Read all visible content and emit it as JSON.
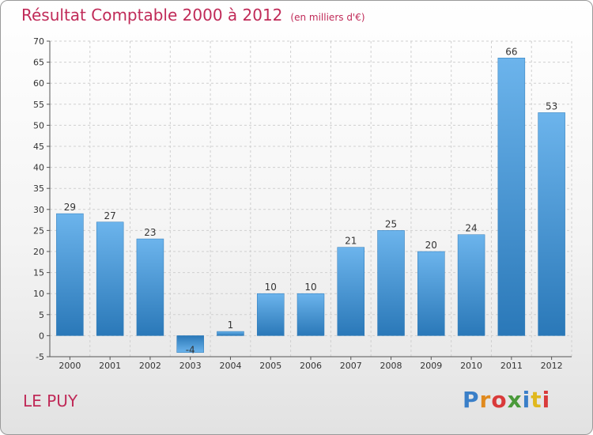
{
  "header": {
    "title": "Résultat Comptable 2000 à 2012",
    "subtitle": "(en milliers d'€)"
  },
  "footer": {
    "town": "LE PUY",
    "logo_letters": [
      "P",
      "r",
      "o",
      "x",
      "i",
      "t",
      "i"
    ]
  },
  "chart_data": {
    "type": "bar",
    "title": "Résultat Comptable 2000 à 2012",
    "subtitle": "(en milliers d'€)",
    "categories": [
      "2000",
      "2001",
      "2002",
      "2003",
      "2004",
      "2005",
      "2006",
      "2007",
      "2008",
      "2009",
      "2010",
      "2011",
      "2012"
    ],
    "values": [
      29,
      27,
      23,
      -4,
      1,
      10,
      10,
      21,
      25,
      20,
      24,
      66,
      53
    ],
    "ylim": [
      -5,
      70
    ],
    "yticks": [
      -5,
      0,
      5,
      10,
      15,
      20,
      25,
      30,
      35,
      40,
      45,
      50,
      55,
      60,
      65,
      70
    ],
    "grid": true,
    "colors": {
      "bar": "#4a9ad8",
      "bar_light": "#6cb4ec",
      "bar_dark": "#2a78b8",
      "grid": "#cfcfcf"
    }
  }
}
